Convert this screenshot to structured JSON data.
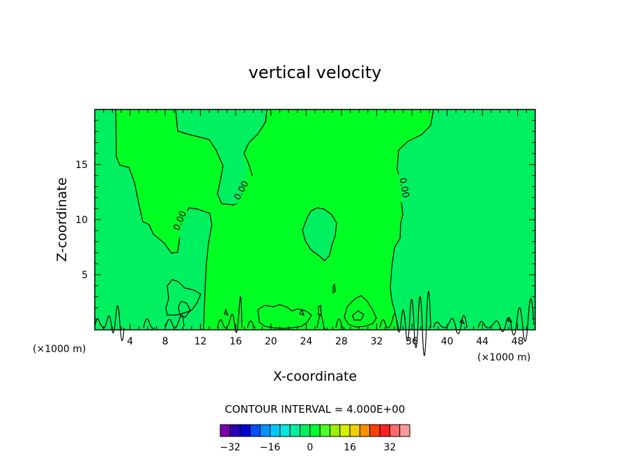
{
  "chart_data": {
    "type": "contour",
    "title": "vertical velocity",
    "xlabel": "X-coordinate",
    "ylabel": "Z-coordinate",
    "x_units": "(×1000 m)",
    "z_units": "(×1000 m)",
    "xlim": [
      0,
      50
    ],
    "ylim": [
      0,
      20
    ],
    "x_ticks": [
      4,
      8,
      12,
      16,
      20,
      24,
      28,
      32,
      36,
      40,
      44,
      48
    ],
    "y_ticks": [
      5,
      10,
      15
    ],
    "contour_interval_label": "CONTOUR INTERVAL = 4.000E+00",
    "contour_interval": 4.0,
    "contour_labels": [
      "0.00",
      "0.00",
      "0.00"
    ],
    "colorbar": {
      "levels": [
        -32,
        -28,
        -24,
        -20,
        -16,
        -12,
        -8,
        -4,
        0,
        4,
        8,
        12,
        16,
        20,
        24,
        28,
        32,
        36
      ],
      "tick_labels": [
        "−32",
        "−16",
        "0",
        "16",
        "32"
      ],
      "tick_values": [
        -32,
        -16,
        0,
        16,
        32
      ],
      "colors": [
        "#7a00a8",
        "#2a00b8",
        "#0000d8",
        "#0050ff",
        "#0090ff",
        "#00c8ff",
        "#00e8e0",
        "#00f0a0",
        "#00f060",
        "#00ff33",
        "#4cff22",
        "#9cf000",
        "#d8f000",
        "#f0d000",
        "#ff9000",
        "#ff4000",
        "#ff2020",
        "#ff6a6a",
        "#ff9a9a"
      ]
    },
    "fill_colors": {
      "negative_region": "#00f060",
      "positive_region": "#00ff22"
    }
  }
}
